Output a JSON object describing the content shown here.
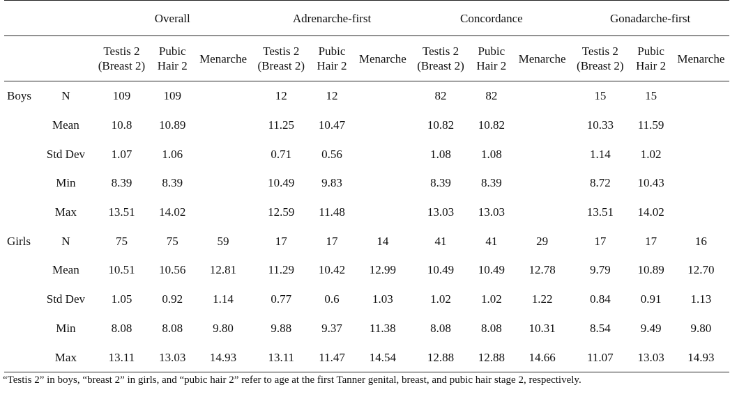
{
  "groups": [
    "Overall",
    "Adrenarche-first",
    "Concordance",
    "Gonadarche-first"
  ],
  "subheaders": {
    "testis": [
      "Testis 2",
      "(Breast 2)"
    ],
    "pubic": [
      "Pubic",
      "Hair 2"
    ],
    "menarche": "Menarche"
  },
  "sections": [
    {
      "sex": "Boys",
      "rows": [
        {
          "stat": "N",
          "vals": [
            "109",
            "109",
            "",
            "12",
            "12",
            "",
            "82",
            "82",
            "",
            "15",
            "15",
            ""
          ]
        },
        {
          "stat": "Mean",
          "vals": [
            "10.8",
            "10.89",
            "",
            "11.25",
            "10.47",
            "",
            "10.82",
            "10.82",
            "",
            "10.33",
            "11.59",
            ""
          ]
        },
        {
          "stat": "Std Dev",
          "vals": [
            "1.07",
            "1.06",
            "",
            "0.71",
            "0.56",
            "",
            "1.08",
            "1.08",
            "",
            "1.14",
            "1.02",
            ""
          ]
        },
        {
          "stat": "Min",
          "vals": [
            "8.39",
            "8.39",
            "",
            "10.49",
            "9.83",
            "",
            "8.39",
            "8.39",
            "",
            "8.72",
            "10.43",
            ""
          ]
        },
        {
          "stat": "Max",
          "vals": [
            "13.51",
            "14.02",
            "",
            "12.59",
            "11.48",
            "",
            "13.03",
            "13.03",
            "",
            "13.51",
            "14.02",
            ""
          ]
        }
      ]
    },
    {
      "sex": "Girls",
      "rows": [
        {
          "stat": "N",
          "vals": [
            "75",
            "75",
            "59",
            "17",
            "17",
            "14",
            "41",
            "41",
            "29",
            "17",
            "17",
            "16"
          ]
        },
        {
          "stat": "Mean",
          "vals": [
            "10.51",
            "10.56",
            "12.81",
            "11.29",
            "10.42",
            "12.99",
            "10.49",
            "10.49",
            "12.78",
            "9.79",
            "10.89",
            "12.70"
          ]
        },
        {
          "stat": "Std Dev",
          "vals": [
            "1.05",
            "0.92",
            "1.14",
            "0.77",
            "0.6",
            "1.03",
            "1.02",
            "1.02",
            "1.22",
            "0.84",
            "0.91",
            "1.13"
          ]
        },
        {
          "stat": "Min",
          "vals": [
            "8.08",
            "8.08",
            "9.80",
            "9.88",
            "9.37",
            "11.38",
            "8.08",
            "8.08",
            "10.31",
            "8.54",
            "9.49",
            "9.80"
          ]
        },
        {
          "stat": "Max",
          "vals": [
            "13.11",
            "13.03",
            "14.93",
            "13.11",
            "11.47",
            "14.54",
            "12.88",
            "12.88",
            "14.66",
            "11.07",
            "13.03",
            "14.93"
          ]
        }
      ]
    }
  ],
  "footnote": "“Testis 2” in boys, “breast 2” in girls, and “pubic hair 2” refer to age at the first Tanner genital, breast, and pubic hair stage 2, respectively."
}
